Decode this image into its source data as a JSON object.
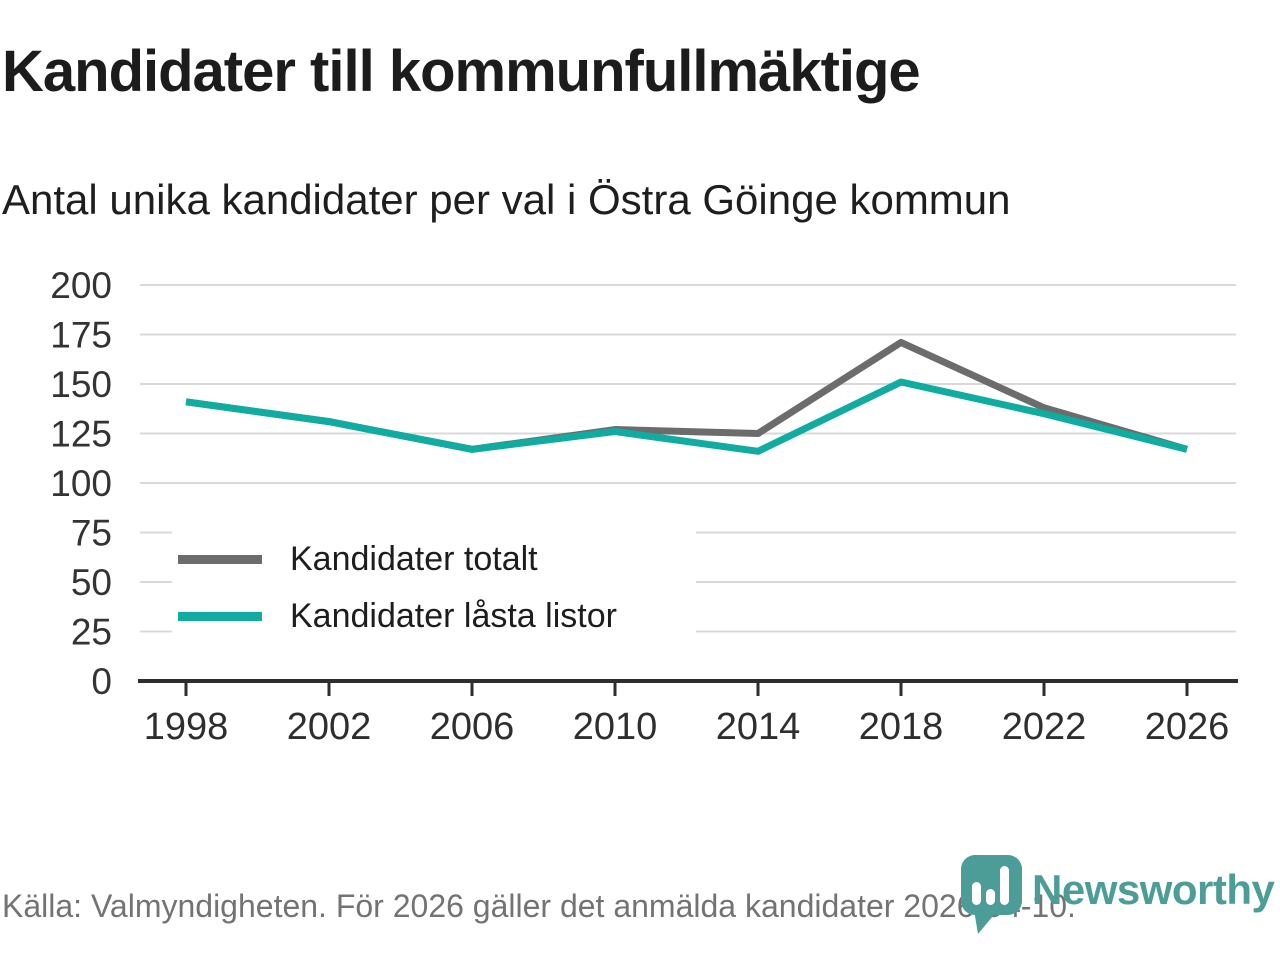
{
  "header": {
    "title": "Kandidater till kommunfullmäktige",
    "subtitle": "Antal unika kandidater per val i Östra Göinge kommun"
  },
  "footer": {
    "source": "Källa: Valmyndigheten. För 2026 gäller det anmälda kandidater 2026-04-10."
  },
  "logo": {
    "text": "Newsworthy",
    "icon": "bar-chart-pin-icon",
    "color": "#4c9d97"
  },
  "colors": {
    "total_line": "#6c6c6c",
    "locked_line": "#10aca1",
    "gridline": "#d9d9d9",
    "axis": "#2e2e2e",
    "title_text": "#1c1c1c",
    "axis_label": "#333333",
    "footer_text": "#737373"
  },
  "chart_data": {
    "type": "line",
    "title": "Kandidater till kommunfullmäktige",
    "subtitle": "Antal unika kandidater per val i Östra Göinge kommun",
    "xlabel": "",
    "ylabel": "",
    "x": [
      1998,
      2002,
      2006,
      2010,
      2014,
      2018,
      2022,
      2026
    ],
    "series": [
      {
        "name": "Kandidater totalt",
        "color": "#6c6c6c",
        "values": [
          141,
          131,
          117,
          127,
          125,
          171,
          138,
          117
        ]
      },
      {
        "name": "Kandidater låsta listor",
        "color": "#10aca1",
        "values": [
          141,
          131,
          117,
          126,
          116,
          151,
          135,
          117
        ]
      }
    ],
    "ylim": [
      0,
      200
    ],
    "yticks": [
      0,
      25,
      50,
      75,
      100,
      125,
      150,
      175,
      200
    ],
    "grid": "horizontal",
    "legend_position": "inside-bottom-left"
  }
}
